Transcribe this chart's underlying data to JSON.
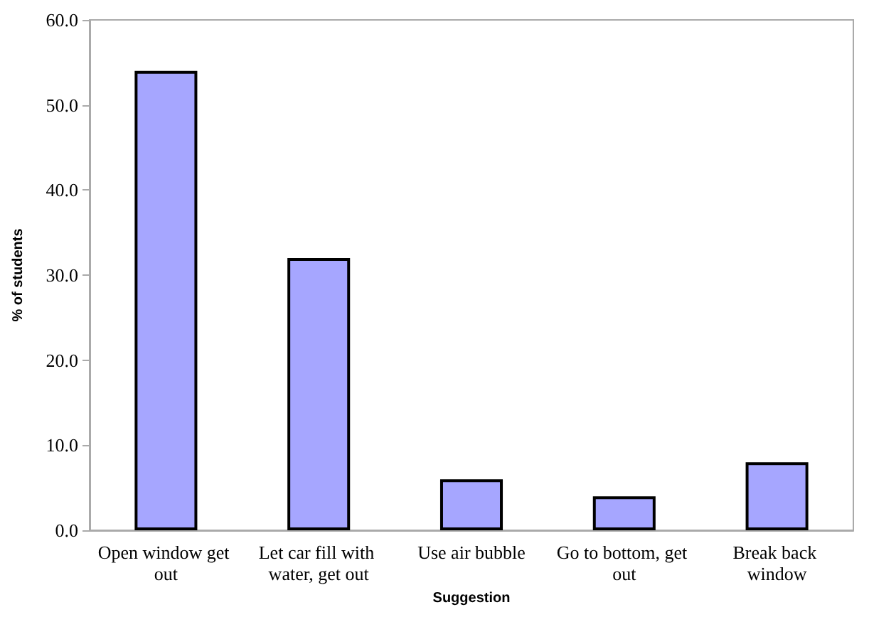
{
  "chart_data": {
    "type": "bar",
    "xlabel": "Suggestion",
    "ylabel": "% of students",
    "categories": [
      "Open window get out",
      "Let car fill with water, get out",
      "Use air bubble",
      "Go to bottom, get out",
      "Break back window"
    ],
    "values": [
      54,
      32,
      6,
      4,
      8
    ],
    "color": "#a6a6ff",
    "ylim": [
      0,
      60
    ],
    "yticks": [
      {
        "value": 0,
        "label": "0.0"
      },
      {
        "value": 10,
        "label": "10.0"
      },
      {
        "value": 20,
        "label": "20.0"
      },
      {
        "value": 30,
        "label": "30.0"
      },
      {
        "value": 40,
        "label": "40.0"
      },
      {
        "value": 50,
        "label": "50.0"
      },
      {
        "value": 60,
        "label": "60.0"
      }
    ],
    "grid": false
  }
}
